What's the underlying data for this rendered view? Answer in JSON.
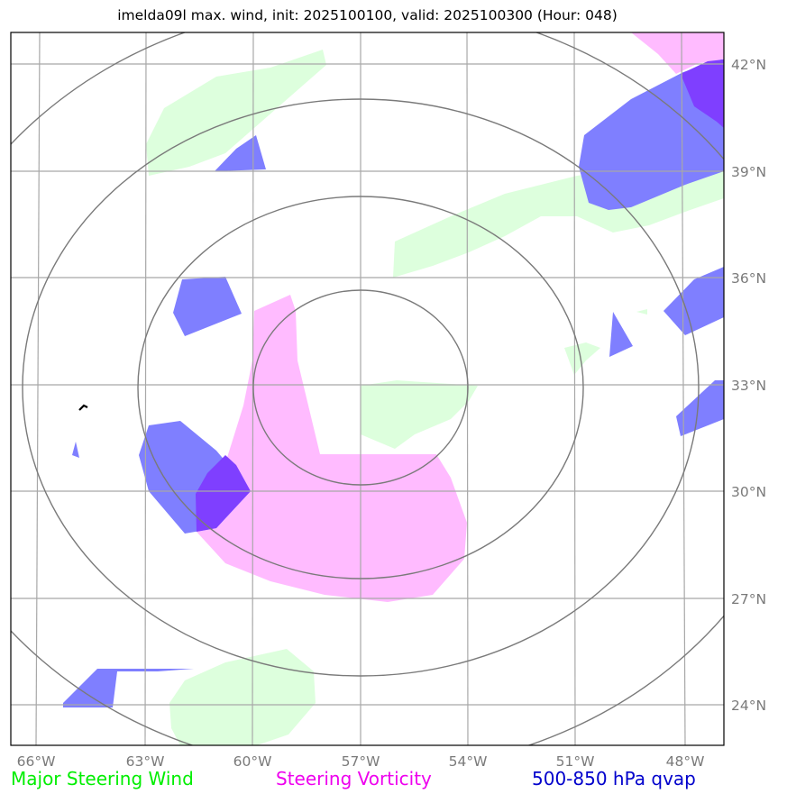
{
  "title": "imelda09l max. wind, init: 2025100100, valid: 2025100300 (Hour: 048)",
  "axes": {
    "lon_labels": [
      "66°W",
      "63°W",
      "60°W",
      "57°W",
      "54°W",
      "51°W",
      "48°W"
    ],
    "lat_labels": [
      "42°N",
      "39°N",
      "36°N",
      "33°N",
      "30°N",
      "27°N",
      "24°N"
    ]
  },
  "legend": {
    "wind": "Major Steering Wind",
    "vorticity": "Steering Vorticity",
    "qvap": "500-850 hPa qvap"
  },
  "colors": {
    "wind": "#ddffdd",
    "vorticity": "#ffbbff",
    "qvap": "#7f7fff",
    "overlap": "#7f3fff",
    "grid": "#a8a8a8",
    "range_rings": "#7a7a7a"
  }
}
